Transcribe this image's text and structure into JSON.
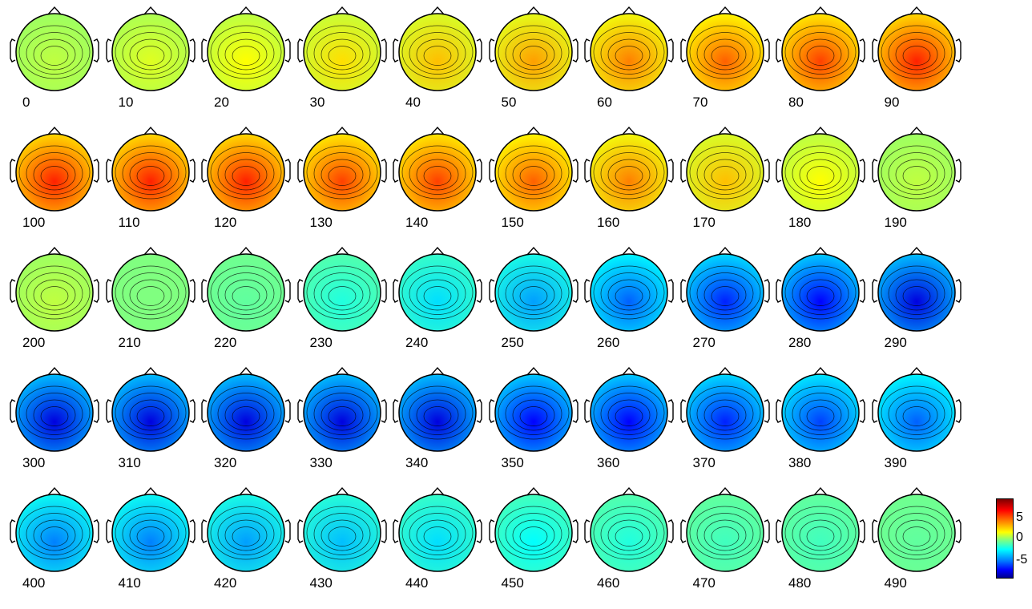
{
  "figure": {
    "latencies": [
      "0",
      "10",
      "20",
      "30",
      "40",
      "50",
      "60",
      "70",
      "80",
      "90",
      "100",
      "110",
      "120",
      "130",
      "140",
      "150",
      "160",
      "170",
      "180",
      "190",
      "200",
      "210",
      "220",
      "230",
      "240",
      "250",
      "260",
      "270",
      "280",
      "290",
      "300",
      "310",
      "320",
      "330",
      "340",
      "350",
      "360",
      "370",
      "380",
      "390",
      "400",
      "410",
      "420",
      "430",
      "440",
      "450",
      "460",
      "470",
      "480",
      "490"
    ],
    "map_values": [
      1,
      1.5,
      2,
      2.5,
      3,
      3.5,
      4,
      4.5,
      5,
      5.5,
      5.5,
      5.5,
      5.5,
      5,
      5,
      4.5,
      4,
      3,
      2,
      1,
      1,
      0,
      -0.5,
      -1.5,
      -2.5,
      -3.5,
      -4.5,
      -5.5,
      -6,
      -6.5,
      -6.5,
      -6.5,
      -6.5,
      -6.5,
      -6.5,
      -6,
      -6,
      -5.5,
      -5,
      -4.5,
      -4,
      -4,
      -3.5,
      -3,
      -2.5,
      -2,
      -1.5,
      -1,
      -1,
      -0.5
    ],
    "colorbar": {
      "ticks": [
        "5",
        "0",
        "-5"
      ],
      "range": [
        -8,
        8
      ],
      "colormap": "jet"
    }
  }
}
